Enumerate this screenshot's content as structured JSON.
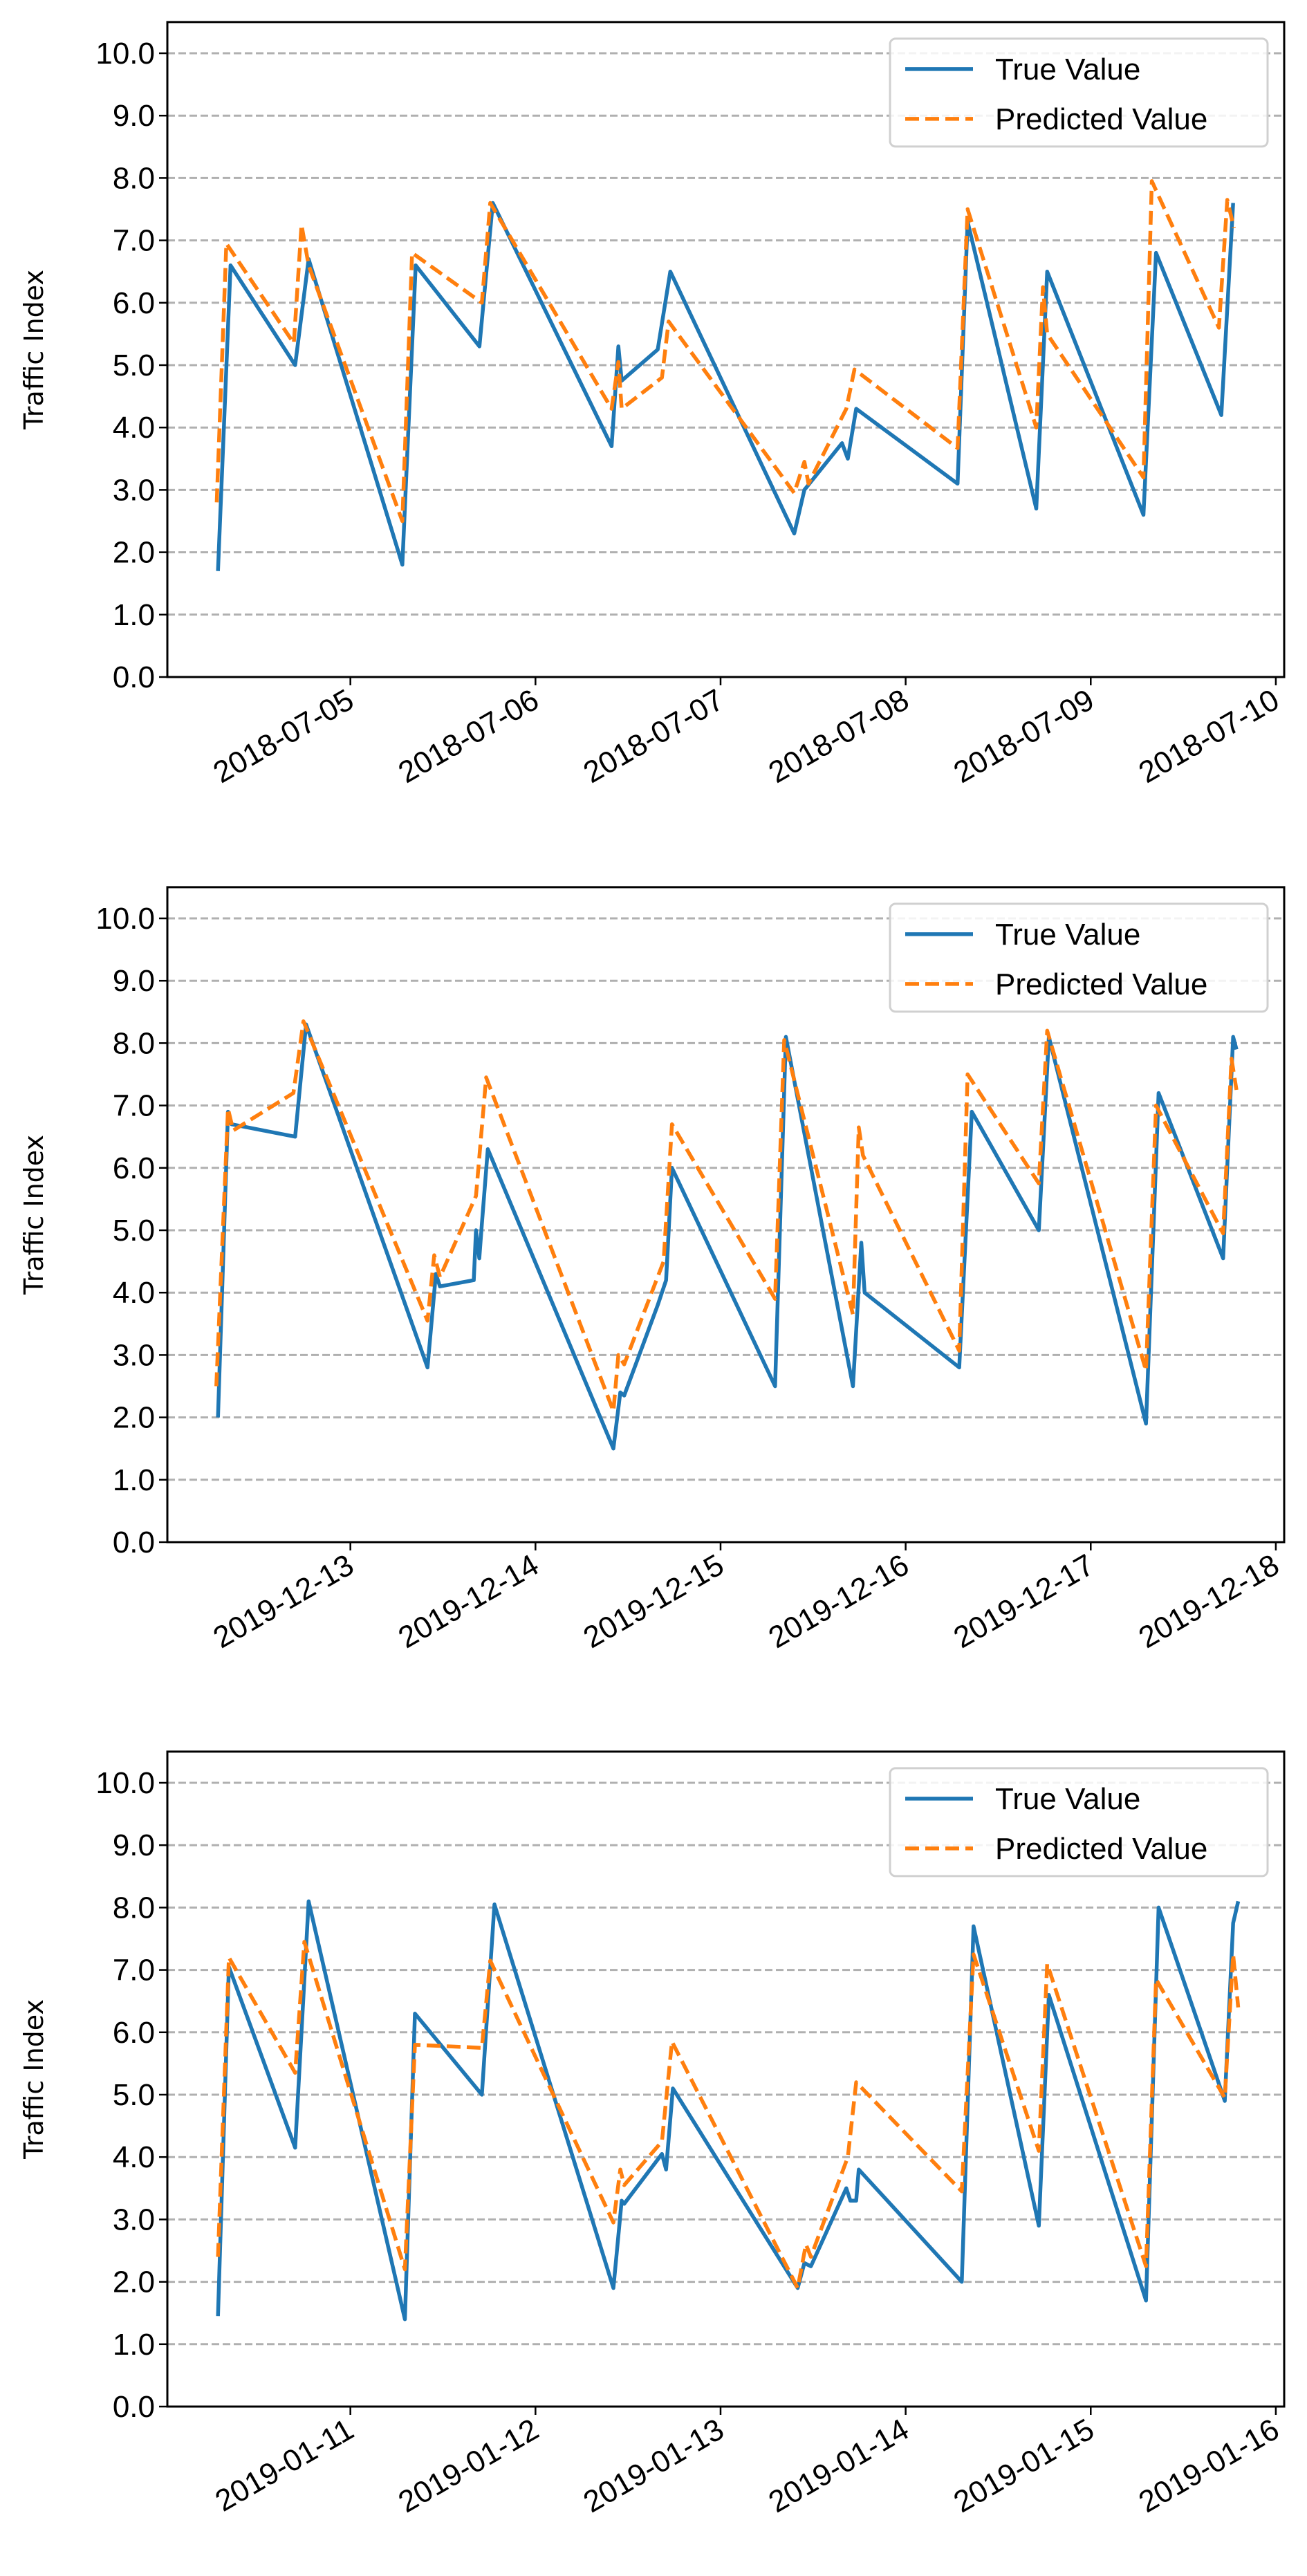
{
  "colors": {
    "true_value": "#1f77b4",
    "predicted_value": "#ff7f0e",
    "grid": "#b0b0b0"
  },
  "chart_data": [
    {
      "type": "line",
      "ylabel": "Traffic Index",
      "ylim": [
        0,
        10.5
      ],
      "xlim": [
        "2018-07-04 00:16",
        "2018-07-10 01:05"
      ],
      "yticks": [
        "0.0",
        "1.0",
        "2.0",
        "3.0",
        "4.0",
        "5.0",
        "6.0",
        "7.0",
        "8.0",
        "9.0",
        "10.0"
      ],
      "xticks": [
        "2018-07-05",
        "2018-07-06",
        "2018-07-07",
        "2018-07-08",
        "2018-07-09",
        "2018-07-10"
      ],
      "grid": "horizontal dashed",
      "legend": "top-right",
      "series": [
        {
          "name": "True Value",
          "style": "solid",
          "points": [
            [
              "2018-07-04 06:50",
              1.7
            ],
            [
              "2018-07-04 08:28",
              6.6
            ],
            [
              "2018-07-04 16:50",
              5.0
            ],
            [
              "2018-07-04 18:35",
              6.7
            ],
            [
              "2018-07-05 06:44",
              1.8
            ],
            [
              "2018-07-05 08:28",
              6.6
            ],
            [
              "2018-07-05 16:44",
              5.3
            ],
            [
              "2018-07-05 18:28",
              7.6
            ],
            [
              "2018-07-06 09:52",
              3.7
            ],
            [
              "2018-07-06 10:45",
              5.3
            ],
            [
              "2018-07-06 11:11",
              4.75
            ],
            [
              "2018-07-06 15:51",
              5.25
            ],
            [
              "2018-07-06 17:29",
              6.5
            ],
            [
              "2018-07-07 09:33",
              2.3
            ],
            [
              "2018-07-07 10:52",
              3.0
            ],
            [
              "2018-07-07 15:45",
              3.75
            ],
            [
              "2018-07-07 16:30",
              3.5
            ],
            [
              "2018-07-07 17:35",
              4.3
            ],
            [
              "2018-07-08 06:44",
              3.1
            ],
            [
              "2018-07-08 08:02",
              7.3
            ],
            [
              "2018-07-08 16:56",
              2.7
            ],
            [
              "2018-07-08 18:21",
              6.5
            ],
            [
              "2018-07-09 06:50",
              2.6
            ],
            [
              "2018-07-09 08:28",
              6.8
            ],
            [
              "2018-07-09 16:56",
              4.2
            ],
            [
              "2018-07-09 18:28",
              7.6
            ]
          ]
        },
        {
          "name": "Predicted Value",
          "style": "dashed",
          "points": [
            [
              "2018-07-04 06:40",
              2.8
            ],
            [
              "2018-07-04 07:55",
              6.95
            ],
            [
              "2018-07-04 16:40",
              5.35
            ],
            [
              "2018-07-04 17:40",
              7.25
            ],
            [
              "2018-07-04 18:35",
              6.6
            ],
            [
              "2018-07-05 06:44",
              2.5
            ],
            [
              "2018-07-05 08:00",
              6.8
            ],
            [
              "2018-07-05 17:03",
              6.0
            ],
            [
              "2018-07-05 18:08",
              7.6
            ],
            [
              "2018-07-06 09:52",
              4.3
            ],
            [
              "2018-07-06 10:45",
              5.05
            ],
            [
              "2018-07-06 11:11",
              4.3
            ],
            [
              "2018-07-06 16:24",
              4.8
            ],
            [
              "2018-07-06 17:16",
              5.7
            ],
            [
              "2018-07-07 09:33",
              2.95
            ],
            [
              "2018-07-07 10:52",
              3.45
            ],
            [
              "2018-07-07 11:24",
              3.1
            ],
            [
              "2018-07-07 16:18",
              4.3
            ],
            [
              "2018-07-07 17:22",
              4.93
            ],
            [
              "2018-07-08 06:44",
              3.67
            ],
            [
              "2018-07-08 08:02",
              7.5
            ],
            [
              "2018-07-08 16:56",
              4.0
            ],
            [
              "2018-07-08 17:48",
              6.25
            ],
            [
              "2018-07-08 18:21",
              5.5
            ],
            [
              "2018-07-09 06:50",
              3.2
            ],
            [
              "2018-07-09 07:55",
              7.95
            ],
            [
              "2018-07-09 16:37",
              5.6
            ],
            [
              "2018-07-09 17:42",
              7.65
            ],
            [
              "2018-07-09 18:34",
              7.2
            ]
          ]
        }
      ]
    },
    {
      "type": "line",
      "ylabel": "Traffic Index",
      "ylim": [
        0,
        10.5
      ],
      "xlim": [
        "2019-12-12 00:16",
        "2019-12-18 01:05"
      ],
      "yticks": [
        "0.0",
        "1.0",
        "2.0",
        "3.0",
        "4.0",
        "5.0",
        "6.0",
        "7.0",
        "8.0",
        "9.0",
        "10.0"
      ],
      "xticks": [
        "2019-12-13",
        "2019-12-14",
        "2019-12-15",
        "2019-12-16",
        "2019-12-17",
        "2019-12-18"
      ],
      "grid": "horizontal dashed",
      "legend": "top-right",
      "series": [
        {
          "name": "True Value",
          "style": "solid",
          "points": [
            [
              "2019-12-12 06:50",
              2.0
            ],
            [
              "2019-12-12 08:08",
              6.9
            ],
            [
              "2019-12-12 08:35",
              6.7
            ],
            [
              "2019-12-12 16:50",
              6.5
            ],
            [
              "2019-12-12 18:15",
              8.3
            ],
            [
              "2019-12-13 10:00",
              2.8
            ],
            [
              "2019-12-13 11:05",
              4.3
            ],
            [
              "2019-12-13 11:37",
              4.1
            ],
            [
              "2019-12-13 16:00",
              4.2
            ],
            [
              "2019-12-13 16:17",
              5.0
            ],
            [
              "2019-12-13 16:43",
              4.55
            ],
            [
              "2019-12-13 17:03",
              5.1
            ],
            [
              "2019-12-13 17:49",
              6.3
            ],
            [
              "2019-12-14 10:06",
              1.5
            ],
            [
              "2019-12-14 11:00",
              2.4
            ],
            [
              "2019-12-14 11:30",
              2.35
            ],
            [
              "2019-12-14 15:51",
              3.8
            ],
            [
              "2019-12-14 16:56",
              4.2
            ],
            [
              "2019-12-14 17:42",
              6.0
            ],
            [
              "2019-12-15 07:04",
              2.5
            ],
            [
              "2019-12-15 08:28",
              8.1
            ],
            [
              "2019-12-15 17:10",
              2.5
            ],
            [
              "2019-12-15 18:15",
              4.8
            ],
            [
              "2019-12-15 18:41",
              4.0
            ],
            [
              "2019-12-16 06:57",
              2.8
            ],
            [
              "2019-12-16 08:35",
              6.9
            ],
            [
              "2019-12-16 17:16",
              5.0
            ],
            [
              "2019-12-16 18:34",
              8.1
            ],
            [
              "2019-12-17 07:10",
              1.9
            ],
            [
              "2019-12-17 08:48",
              7.2
            ],
            [
              "2019-12-17 17:10",
              4.55
            ],
            [
              "2019-12-17 18:28",
              8.1
            ],
            [
              "2019-12-17 18:54",
              7.9
            ]
          ]
        },
        {
          "name": "Predicted Value",
          "style": "dashed",
          "points": [
            [
              "2019-12-12 06:37",
              2.5
            ],
            [
              "2019-12-12 08:08",
              6.95
            ],
            [
              "2019-12-12 08:48",
              6.6
            ],
            [
              "2019-12-12 16:37",
              7.2
            ],
            [
              "2019-12-12 17:55",
              8.35
            ],
            [
              "2019-12-13 10:00",
              3.55
            ],
            [
              "2019-12-13 10:52",
              4.6
            ],
            [
              "2019-12-13 11:37",
              4.25
            ],
            [
              "2019-12-13 16:17",
              5.55
            ],
            [
              "2019-12-13 17:36",
              7.45
            ],
            [
              "2019-12-14 10:06",
              2.1
            ],
            [
              "2019-12-14 10:45",
              3.0
            ],
            [
              "2019-12-14 11:30",
              2.85
            ],
            [
              "2019-12-14 16:37",
              4.5
            ],
            [
              "2019-12-14 17:42",
              6.7
            ],
            [
              "2019-12-15 07:04",
              3.9
            ],
            [
              "2019-12-15 08:15",
              8.05
            ],
            [
              "2019-12-15 17:10",
              3.65
            ],
            [
              "2019-12-15 17:55",
              6.65
            ],
            [
              "2019-12-15 18:28",
              6.2
            ],
            [
              "2019-12-16 06:57",
              3.07
            ],
            [
              "2019-12-16 08:02",
              7.5
            ],
            [
              "2019-12-16 17:16",
              5.75
            ],
            [
              "2019-12-16 18:21",
              8.2
            ],
            [
              "2019-12-17 07:10",
              2.75
            ],
            [
              "2019-12-17 08:28",
              7.0
            ],
            [
              "2019-12-17 17:10",
              4.95
            ],
            [
              "2019-12-17 18:15",
              7.75
            ],
            [
              "2019-12-17 18:54",
              7.25
            ]
          ]
        }
      ]
    },
    {
      "type": "line",
      "ylabel": "Traffic Index",
      "ylim": [
        0,
        10.5
      ],
      "xlim": [
        "2019-01-10 00:16",
        "2019-01-16 01:05"
      ],
      "yticks": [
        "0.0",
        "1.0",
        "2.0",
        "3.0",
        "4.0",
        "5.0",
        "6.0",
        "7.0",
        "8.0",
        "9.0",
        "10.0"
      ],
      "xticks": [
        "2019-01-11",
        "2019-01-12",
        "2019-01-13",
        "2019-01-14",
        "2019-01-15",
        "2019-01-16"
      ],
      "grid": "horizontal dashed",
      "legend": "top-right",
      "series": [
        {
          "name": "True Value",
          "style": "solid",
          "points": [
            [
              "2019-01-10 06:50",
              1.45
            ],
            [
              "2019-01-10 08:15",
              7.05
            ],
            [
              "2019-01-10 16:50",
              4.15
            ],
            [
              "2019-01-10 18:35",
              8.1
            ],
            [
              "2019-01-11 07:04",
              1.4
            ],
            [
              "2019-01-11 08:22",
              6.3
            ],
            [
              "2019-01-11 17:03",
              5.0
            ],
            [
              "2019-01-11 18:41",
              8.05
            ],
            [
              "2019-01-12 10:06",
              1.9
            ],
            [
              "2019-01-12 11:11",
              3.3
            ],
            [
              "2019-01-12 11:30",
              3.25
            ],
            [
              "2019-01-12 16:24",
              4.05
            ],
            [
              "2019-01-12 16:56",
              3.8
            ],
            [
              "2019-01-12 17:49",
              5.1
            ],
            [
              "2019-01-13 10:00",
              1.9
            ],
            [
              "2019-01-13 10:52",
              2.3
            ],
            [
              "2019-01-13 11:43",
              2.25
            ],
            [
              "2019-01-13 16:18",
              3.5
            ],
            [
              "2019-01-13 16:50",
              3.3
            ],
            [
              "2019-01-13 17:35",
              3.3
            ],
            [
              "2019-01-13 17:55",
              3.8
            ],
            [
              "2019-01-14 07:17",
              2.0
            ],
            [
              "2019-01-14 08:48",
              7.7
            ],
            [
              "2019-01-14 17:16",
              2.9
            ],
            [
              "2019-01-14 18:34",
              6.6
            ],
            [
              "2019-01-15 07:10",
              1.7
            ],
            [
              "2019-01-15 08:48",
              8.0
            ],
            [
              "2019-01-15 17:23",
              4.9
            ],
            [
              "2019-01-15 18:28",
              7.75
            ],
            [
              "2019-01-15 19:07",
              8.1
            ]
          ]
        },
        {
          "name": "Predicted Value",
          "style": "dashed",
          "points": [
            [
              "2019-01-10 06:50",
              2.4
            ],
            [
              "2019-01-10 08:15",
              7.2
            ],
            [
              "2019-01-10 16:50",
              5.35
            ],
            [
              "2019-01-10 18:02",
              7.45
            ],
            [
              "2019-01-11 07:04",
              2.2
            ],
            [
              "2019-01-11 08:22",
              5.8
            ],
            [
              "2019-01-11 17:03",
              5.75
            ],
            [
              "2019-01-11 18:08",
              7.15
            ],
            [
              "2019-01-12 10:06",
              2.95
            ],
            [
              "2019-01-12 11:00",
              3.8
            ],
            [
              "2019-01-12 11:30",
              3.55
            ],
            [
              "2019-01-12 16:24",
              4.25
            ],
            [
              "2019-01-12 17:42",
              5.85
            ],
            [
              "2019-01-13 10:00",
              1.9
            ],
            [
              "2019-01-13 11:04",
              2.6
            ],
            [
              "2019-01-13 11:43",
              2.4
            ],
            [
              "2019-01-13 16:30",
              4.0
            ],
            [
              "2019-01-13 17:35",
              5.2
            ],
            [
              "2019-01-14 07:17",
              3.45
            ],
            [
              "2019-01-14 08:48",
              7.25
            ],
            [
              "2019-01-14 17:16",
              4.1
            ],
            [
              "2019-01-14 18:21",
              7.1
            ],
            [
              "2019-01-15 07:10",
              2.25
            ],
            [
              "2019-01-15 08:28",
              6.85
            ],
            [
              "2019-01-15 17:23",
              4.95
            ],
            [
              "2019-01-15 18:28",
              7.25
            ],
            [
              "2019-01-15 19:07",
              6.4
            ]
          ]
        }
      ]
    }
  ]
}
